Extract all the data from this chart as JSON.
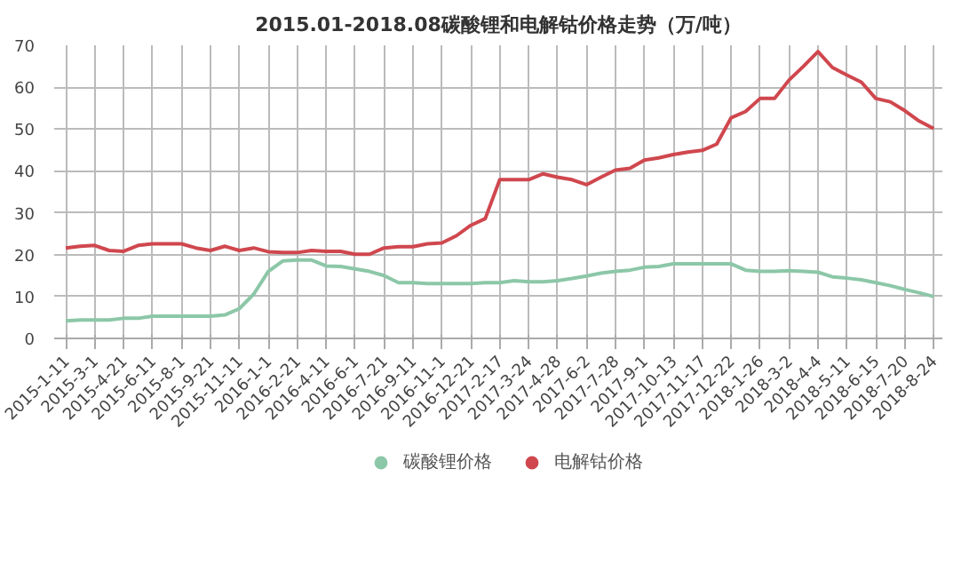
{
  "chart_data": {
    "type": "line",
    "title": "2015.01-2018.08碳酸锂和电解钴价格走势（万/吨）",
    "categories": [
      "2015-1-11",
      null,
      "2015-3-1",
      null,
      "2015-4-21",
      null,
      "2015-6-11",
      null,
      "2015-8-1",
      null,
      "2015-9-21",
      null,
      "2015-11-11",
      null,
      "2016-1-1",
      null,
      "2016-2-21",
      null,
      "2016-4-11",
      null,
      "2016-6-1",
      null,
      "2016-7-21",
      null,
      "2016-9-11",
      null,
      "2016-11-1",
      null,
      "2016-12-21",
      null,
      "2017-2-17",
      null,
      "2017-3-24",
      null,
      "2017-4-28",
      null,
      "2017-6-2",
      null,
      "2017-7-28",
      null,
      "2017-9-1",
      null,
      "2017-10-13",
      null,
      "2017-11-17",
      null,
      "2017-12-22",
      null,
      "2018-1-26",
      null,
      "2018-3-2",
      null,
      "2018-4-4",
      null,
      "2018-5-11",
      null,
      "2018-6-15",
      null,
      "2018-7-20",
      null,
      "2018-8-24"
    ],
    "series": [
      {
        "name": "碳酸锂价格",
        "color": "#8cc7a8",
        "values": [
          4.2,
          4.4,
          4.4,
          4.4,
          4.8,
          4.8,
          5.3,
          5.3,
          5.3,
          5.3,
          5.3,
          5.6,
          7.1,
          10.6,
          16.0,
          18.5,
          18.7,
          18.7,
          17.3,
          17.2,
          16.6,
          16.0,
          15.0,
          13.3,
          13.3,
          13.1,
          13.1,
          13.1,
          13.1,
          13.3,
          13.3,
          13.8,
          13.5,
          13.5,
          13.8,
          14.3,
          14.9,
          15.6,
          16.0,
          16.3,
          17.0,
          17.2,
          17.8,
          17.8,
          17.8,
          17.8,
          17.8,
          16.3,
          16.0,
          16.0,
          16.2,
          16.0,
          15.8,
          14.7,
          14.4,
          14.0,
          13.3,
          12.6,
          11.7,
          10.9,
          10.0
        ]
      },
      {
        "name": "电解钴价格",
        "color": "#d0474e",
        "values": [
          21.6,
          22.0,
          22.2,
          21.0,
          20.8,
          22.2,
          22.6,
          22.6,
          22.6,
          21.6,
          21.0,
          22.0,
          21.0,
          21.6,
          20.7,
          20.5,
          20.5,
          21.0,
          20.8,
          20.8,
          20.1,
          20.1,
          21.6,
          21.9,
          21.9,
          22.6,
          22.8,
          24.5,
          27.0,
          28.6,
          37.9,
          37.9,
          37.9,
          39.3,
          38.5,
          37.9,
          36.7,
          38.5,
          40.2,
          40.6,
          42.6,
          43.1,
          43.9,
          44.5,
          44.9,
          46.4,
          52.7,
          54.2,
          57.3,
          57.3,
          61.7,
          65.0,
          68.5,
          64.7,
          62.9,
          61.2,
          57.3,
          56.5,
          54.4,
          51.9,
          50.1
        ]
      }
    ],
    "ylim": [
      0,
      70
    ],
    "yticks": [
      0,
      10,
      20,
      30,
      40,
      50,
      60,
      70
    ],
    "grid": true,
    "legend": "bottom",
    "marker": "none",
    "line_style": "solid"
  }
}
